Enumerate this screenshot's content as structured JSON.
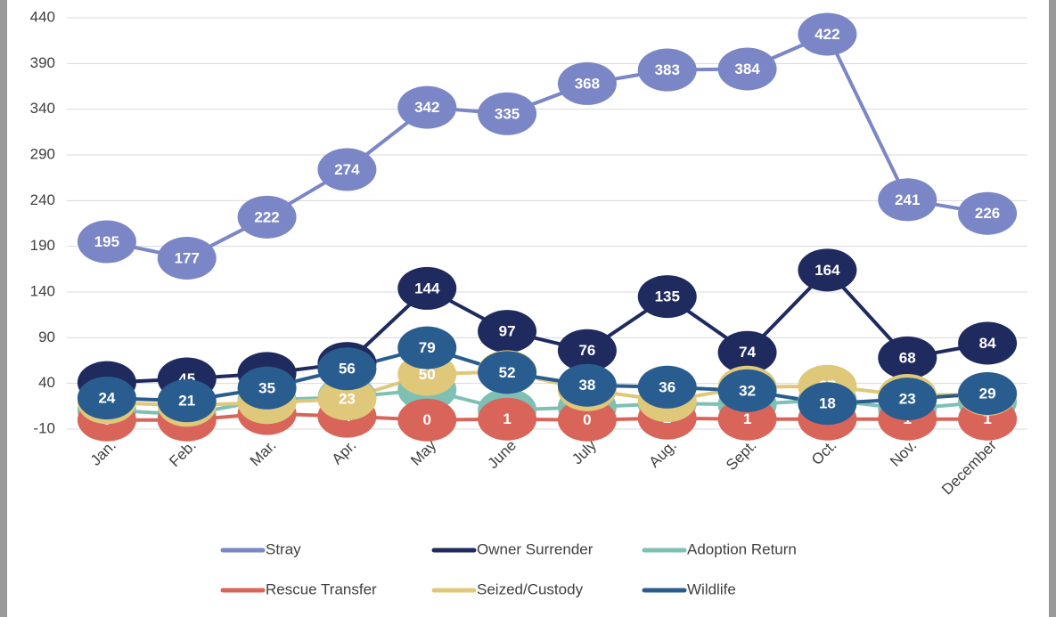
{
  "chart_data": {
    "type": "line",
    "categories": [
      "Jan.",
      "Feb.",
      "Mar.",
      "Apr.",
      "May",
      "June",
      "July",
      "Aug.",
      "Sept.",
      "Oct.",
      "Nov.",
      "December"
    ],
    "series": [
      {
        "name": "Stray",
        "color": "#7b86c6",
        "values": [
          195,
          177,
          222,
          274,
          342,
          335,
          368,
          383,
          384,
          422,
          241,
          226
        ]
      },
      {
        "name": "Owner Surrender",
        "color": "#1f2a5e",
        "values": [
          41,
          45,
          51,
          62,
          144,
          97,
          76,
          135,
          74,
          164,
          68,
          84
        ]
      },
      {
        "name": "Adoption Return",
        "color": "#7fc0b5",
        "values": [
          11,
          6,
          22,
          25,
          33,
          11,
          14,
          18,
          17,
          22,
          12,
          20
        ]
      },
      {
        "name": "Rescue Transfer",
        "color": "#d9655a",
        "values": [
          0,
          0,
          7,
          4,
          0,
          1,
          0,
          2,
          1,
          1,
          1,
          1
        ]
      },
      {
        "name": "Seized/Custody",
        "color": "#e0c87a",
        "values": [
          19,
          16,
          19,
          23,
          50,
          53,
          33,
          21,
          36,
          37,
          27,
          28
        ]
      },
      {
        "name": "Wildlife",
        "color": "#2a5d8f",
        "values": [
          24,
          21,
          35,
          56,
          79,
          52,
          38,
          36,
          32,
          18,
          23,
          29
        ]
      }
    ],
    "ylim": [
      -10,
      440
    ],
    "yticks": [
      -10,
      40,
      90,
      140,
      190,
      240,
      290,
      340,
      390,
      440
    ],
    "grid": true,
    "legend": "bottom",
    "data_labels": true
  }
}
